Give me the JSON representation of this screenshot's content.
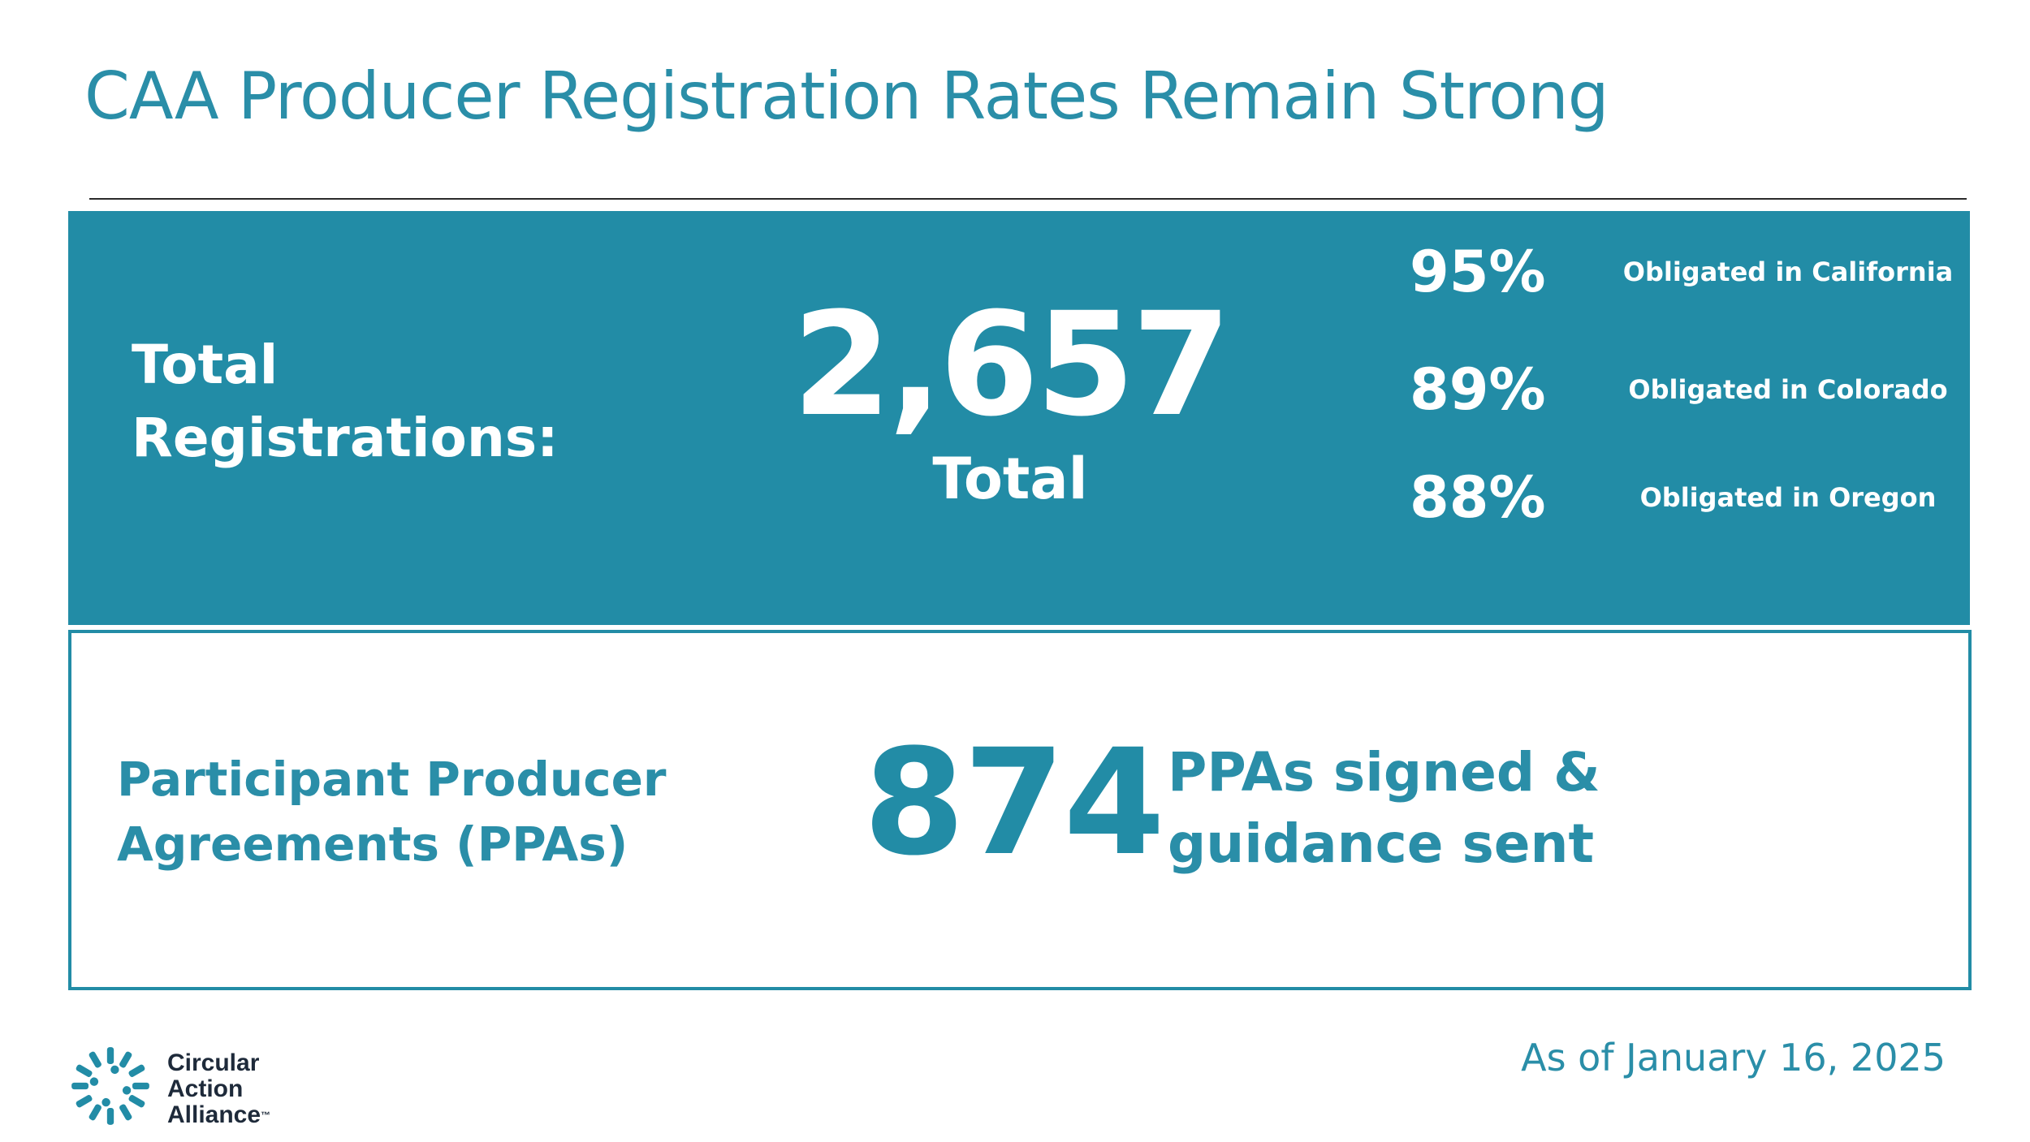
{
  "title": "CAA Producer Registration Rates Remain Strong",
  "registrations": {
    "label_line1": "Total",
    "label_line2": "Registrations:",
    "value": "2,657",
    "sub": "Total",
    "stats": [
      {
        "pct": "95%",
        "label": "Obligated in California"
      },
      {
        "pct": "89%",
        "label": "Obligated in Colorado"
      },
      {
        "pct": "88%",
        "label": "Obligated in Oregon"
      }
    ]
  },
  "ppa": {
    "label_line1": "Participant Producer",
    "label_line2": "Agreements (PPAs)",
    "value": "874",
    "desc_line1": "PPAs signed &",
    "desc_line2": "guidance sent"
  },
  "date": "As of January 16, 2025",
  "logo": {
    "line1": "Circular",
    "line2": "Action",
    "line3": "Alliance",
    "tm": "™"
  },
  "colors": {
    "accent": "#228ca6",
    "title": "#2a8ea8",
    "logo_text": "#1e2a3a"
  }
}
